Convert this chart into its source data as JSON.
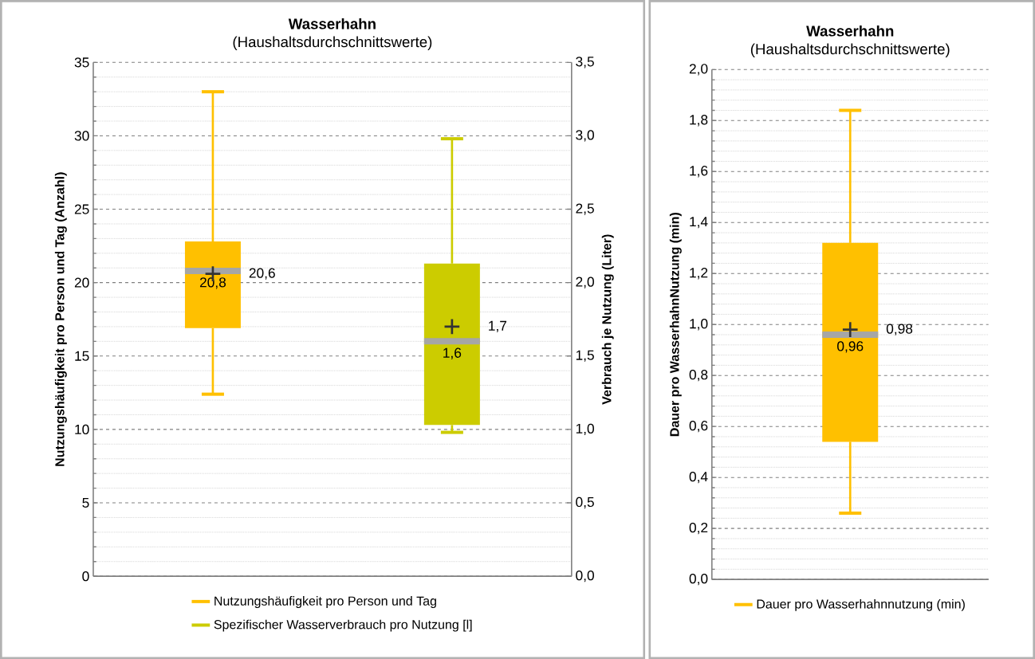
{
  "chart_data": [
    {
      "type": "box",
      "title": "Wasserhahn",
      "subtitle": "(Haushaltsdurchschnittswerte)",
      "ylabel": "Nutzungshäufigkeit pro Person und Tag (Anzahl)",
      "y2label": "Verbrauch je Nutzung (Liter)",
      "categories": [
        null,
        null
      ],
      "series": [
        {
          "name": "Nutzungshäufigkeit pro Person und Tag",
          "color": "#ffc000",
          "boxes": [
            {
              "low": 12.4,
              "q1": 16.9,
              "median": 20.8,
              "q3": 22.8,
              "high": 33.0,
              "mean": 20.6
            },
            null
          ]
        },
        {
          "name": "Spezifischer Wasserverbrauch pro Nutzung [l]",
          "color": "#cccc00",
          "axis": "y2",
          "boxes": [
            null,
            {
              "low": 0.98,
              "q1": 1.03,
              "median": 1.6,
              "q3": 2.13,
              "high": 2.98,
              "mean": 1.7
            }
          ]
        }
      ],
      "ylim": [
        0,
        35
      ],
      "yticks": [
        0,
        5,
        10,
        15,
        20,
        25,
        30,
        35
      ],
      "y2lim": [
        0,
        3.5
      ],
      "y2ticks": [
        {
          "value": 0,
          "label": "0,0"
        },
        {
          "value": 0.5,
          "label": "0,5"
        },
        {
          "value": 1,
          "label": "1,0"
        },
        {
          "value": 1.5,
          "label": "1,5"
        },
        {
          "value": 2,
          "label": "2,0"
        },
        {
          "value": 2.5,
          "label": "2,5"
        },
        {
          "value": 3,
          "label": "3,0"
        },
        {
          "value": 3.5,
          "label": "3,5"
        }
      ],
      "annotations": [
        "20,8",
        "20,6",
        "1,6",
        "1,7"
      ],
      "grid": "y",
      "legend": "bottom",
      "marker": "cross"
    },
    {
      "type": "box",
      "title": "Wasserhahn",
      "subtitle": "(Haushaltsdurchschnittswerte)",
      "ylabel": "Dauer pro WasserhahnNutzung (min)",
      "categories": [
        null
      ],
      "series": [
        {
          "name": "Dauer pro Wasserhahnnutzung (min)",
          "color": "#ffc000",
          "boxes": [
            {
              "low": 0.26,
              "q1": 0.54,
              "median": 0.96,
              "q3": 1.32,
              "high": 1.84,
              "mean": 0.98
            }
          ]
        }
      ],
      "ylim": [
        0,
        2
      ],
      "yticks": [
        {
          "value": 0,
          "label": "0,0"
        },
        {
          "value": 0.2,
          "label": "0,2"
        },
        {
          "value": 0.4,
          "label": "0,4"
        },
        {
          "value": 0.6,
          "label": "0,6"
        },
        {
          "value": 0.8,
          "label": "0,8"
        },
        {
          "value": 1,
          "label": "1,0"
        },
        {
          "value": 1.2,
          "label": "1,2"
        },
        {
          "value": 1.4,
          "label": "1,4"
        },
        {
          "value": 1.6,
          "label": "1,6"
        },
        {
          "value": 1.8,
          "label": "1,8"
        },
        {
          "value": 2,
          "label": "2,0"
        }
      ],
      "annotations": [
        "0,96",
        "0,98"
      ],
      "grid": "y",
      "legend": "bottom",
      "marker": "cross"
    }
  ]
}
